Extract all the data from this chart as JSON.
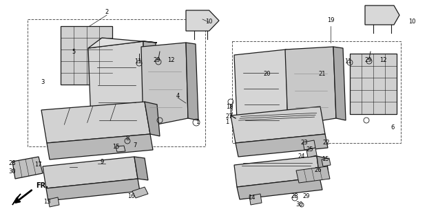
{
  "background_color": "#ffffff",
  "line_color": "#1a1a1a",
  "fig_width": 6.2,
  "fig_height": 3.2,
  "dpi": 100,
  "left_annotations": [
    [
      "2",
      155,
      18
    ],
    [
      "5",
      107,
      75
    ],
    [
      "3",
      62,
      120
    ],
    [
      "10",
      303,
      32
    ],
    [
      "11",
      200,
      90
    ],
    [
      "29",
      228,
      88
    ],
    [
      "12",
      248,
      88
    ],
    [
      "4",
      258,
      140
    ],
    [
      "1",
      287,
      178
    ],
    [
      "8",
      185,
      202
    ],
    [
      "15",
      168,
      214
    ],
    [
      "7",
      196,
      212
    ],
    [
      "9",
      148,
      236
    ],
    [
      "16",
      190,
      286
    ],
    [
      "13",
      68,
      293
    ],
    [
      "17",
      55,
      240
    ],
    [
      "28",
      18,
      238
    ],
    [
      "30",
      18,
      250
    ]
  ],
  "right_annotations": [
    [
      "1",
      330,
      178
    ],
    [
      "18",
      333,
      155
    ],
    [
      "27",
      333,
      170
    ],
    [
      "19",
      480,
      30
    ],
    [
      "10",
      598,
      32
    ],
    [
      "11",
      505,
      90
    ],
    [
      "29",
      535,
      88
    ],
    [
      "12",
      556,
      88
    ],
    [
      "20",
      388,
      108
    ],
    [
      "21",
      468,
      108
    ],
    [
      "6",
      570,
      185
    ],
    [
      "23",
      442,
      207
    ],
    [
      "25",
      450,
      218
    ],
    [
      "22",
      474,
      207
    ],
    [
      "24",
      438,
      228
    ],
    [
      "15",
      472,
      232
    ],
    [
      "26",
      462,
      248
    ],
    [
      "14",
      365,
      288
    ],
    [
      "28",
      428,
      285
    ],
    [
      "29",
      445,
      285
    ],
    [
      "30",
      435,
      298
    ]
  ],
  "fr_label": "FR."
}
